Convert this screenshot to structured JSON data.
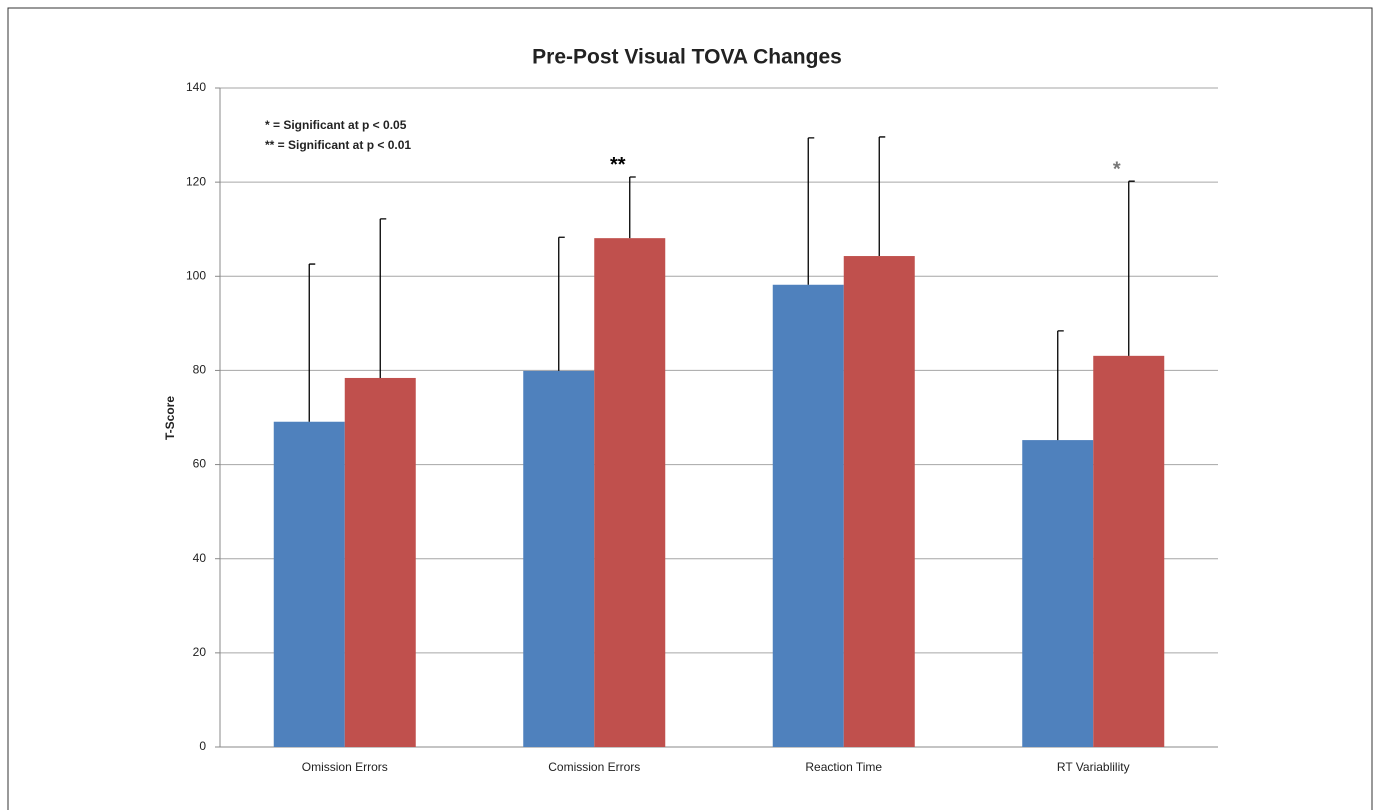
{
  "chart_data": {
    "type": "bar",
    "title": "Pre-Post Visual TOVA Changes",
    "y_label": "T-Score",
    "notes": [
      "* = Significant at p < 0.05",
      "** = Significant at p < 0.01"
    ],
    "categories": [
      "Omission Errors",
      "Comission Errors",
      "Reaction Time",
      "RT Variablility"
    ],
    "series": [
      {
        "color": "#4f81bd",
        "values": [
          69.1,
          79.9,
          98.2,
          65.2
        ],
        "errors": [
          33.5,
          28.4,
          31.2,
          23.2
        ],
        "significance": [
          null,
          null,
          null,
          null
        ]
      },
      {
        "color": "#c0504d",
        "values": [
          78.4,
          108.1,
          104.3,
          83.1
        ],
        "errors": [
          33.8,
          13.0,
          25.3,
          37.1
        ],
        "significance": [
          null,
          "**",
          null,
          "*"
        ]
      }
    ],
    "ylim": [
      0,
      140
    ],
    "yticks": [
      0,
      20,
      40,
      60,
      80,
      100,
      120,
      140
    ],
    "grid": true
  }
}
